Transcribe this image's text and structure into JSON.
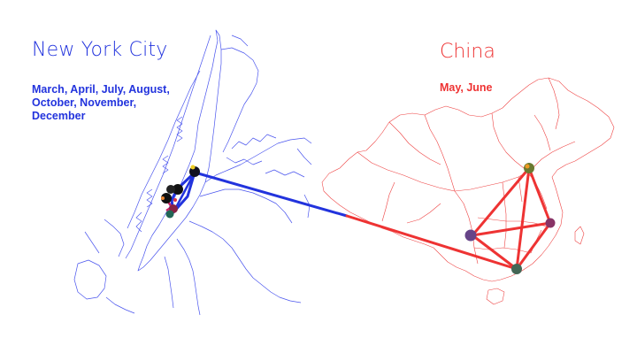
{
  "nyc": {
    "title": "New York City",
    "months": "March, April, July, August, October, November, December",
    "color": "#2233dd"
  },
  "china": {
    "title": "China",
    "months": "May, June",
    "color": "#ee3333"
  },
  "colors": {
    "nyc_outline": "#4a55ee",
    "china_outline": "#ee4444",
    "connector": "#2233dd"
  }
}
